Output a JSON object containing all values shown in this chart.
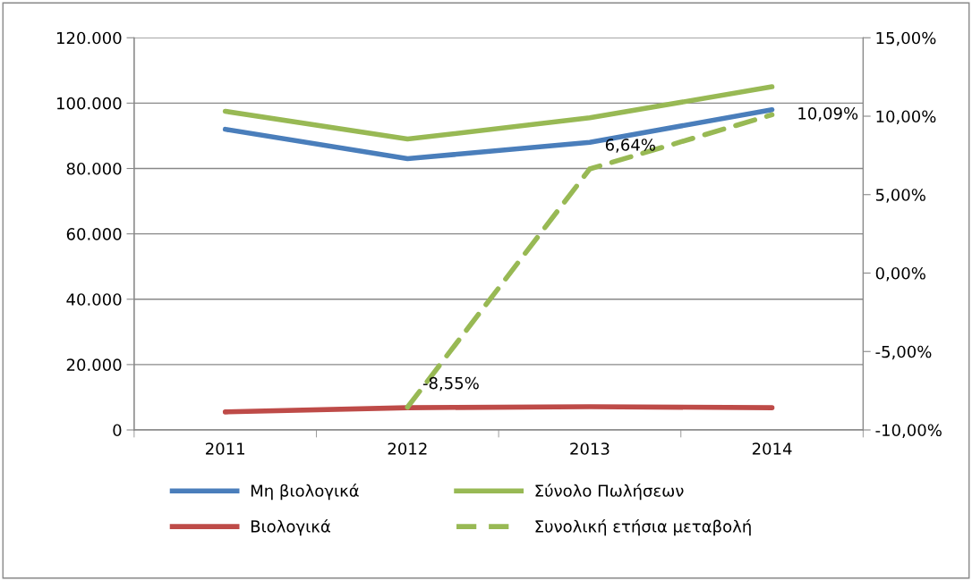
{
  "chart_data": {
    "type": "line",
    "categories": [
      "2011",
      "2012",
      "2013",
      "2014"
    ],
    "series": [
      {
        "name": "Μη βιολογικά",
        "color": "#4a7ebb",
        "values": [
          92000,
          83000,
          88000,
          98000
        ]
      },
      {
        "name": "Βιολογικά",
        "color": "#be4b48",
        "values": [
          5500,
          6800,
          7100,
          6800
        ]
      },
      {
        "name": "Σύνολο Πωλήσεων",
        "color": "#98b954",
        "values": [
          97500,
          89000,
          95500,
          105000
        ]
      },
      {
        "name": "Συνολική ετήσια μεταβολή",
        "color": "#98b954",
        "axis": "y2",
        "line_style": "dashed",
        "values": [
          null,
          -8.55,
          6.64,
          10.09
        ],
        "value_labels": [
          null,
          "-8,55%",
          "6,64%",
          "10,09%"
        ]
      }
    ],
    "ylim": [
      0,
      120000
    ],
    "yticks": [
      0,
      {
        "value": 20000,
        "label": "20.000"
      },
      {
        "value": 40000,
        "label": "40.000"
      },
      {
        "value": 60000,
        "label": "60.000"
      },
      {
        "value": 80000,
        "label": "80.000"
      },
      {
        "value": 100000,
        "label": "100.000"
      },
      {
        "value": 120000,
        "label": "120.000"
      }
    ],
    "y2lim": [
      -10,
      15
    ],
    "y2ticks": [
      {
        "value": -10,
        "label": "-10,00%"
      },
      {
        "value": -5,
        "label": "-5,00%"
      },
      {
        "value": 0,
        "label": "0,00%"
      },
      {
        "value": 5,
        "label": "5,00%"
      },
      {
        "value": 10,
        "label": "10,00%"
      },
      {
        "value": 15,
        "label": "15,00%"
      }
    ],
    "grid": "y",
    "legend": "bottom",
    "marker": "none"
  }
}
